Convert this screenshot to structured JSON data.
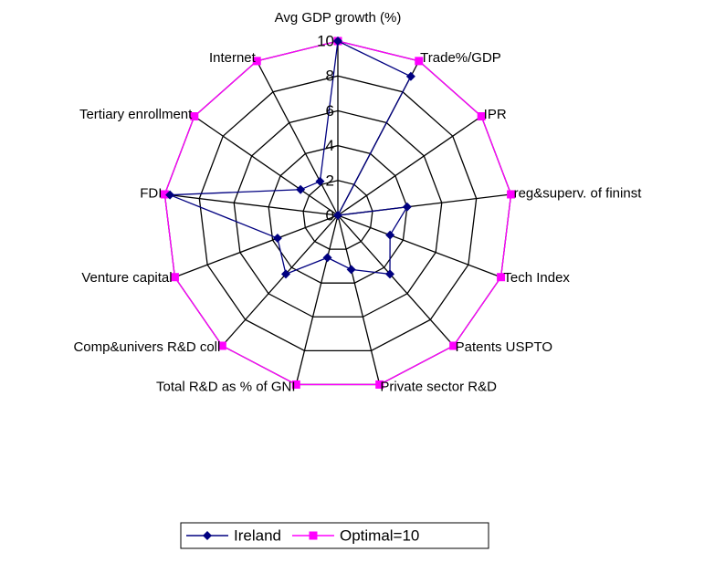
{
  "chart_data": {
    "type": "radar",
    "categories": [
      "Avg GDP growth (%)",
      "Trade%/GDP",
      "IPR",
      "reg&superv. of fininst",
      "Tech Index",
      "Patents USPTO",
      "Private sector R&D",
      "Total R&D as % of GNI",
      "Comp&univers R&D coll",
      "Venture capital",
      "FDI",
      "Tertiary enrollment",
      "Internet"
    ],
    "series": [
      {
        "name": "Ireland",
        "color": "#000080",
        "marker": "diamond",
        "values": [
          10,
          9,
          0,
          4,
          3.2,
          4.5,
          3.2,
          2.5,
          4.5,
          3.7,
          9.7,
          2.6,
          2.2
        ]
      },
      {
        "name": "Optimal=10",
        "color": "#ff00ff",
        "marker": "square",
        "values": [
          10,
          10,
          10,
          10,
          10,
          10,
          10,
          10,
          10,
          10,
          10,
          10,
          10
        ]
      }
    ],
    "rlim": [
      0,
      10
    ],
    "rticks": [
      0,
      2,
      4,
      6,
      8,
      10
    ],
    "grid": true,
    "legend": "bottom"
  }
}
